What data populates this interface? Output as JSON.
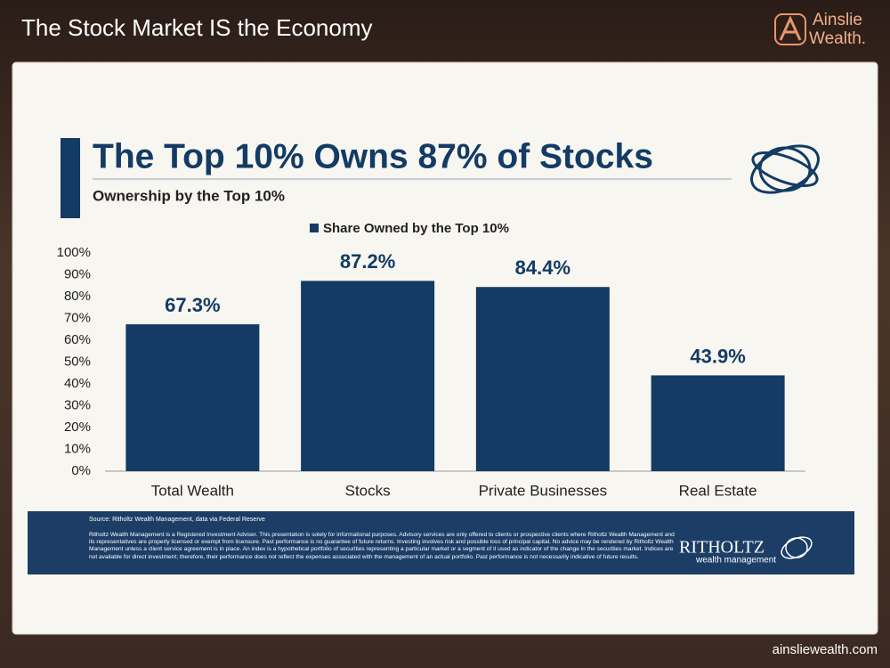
{
  "header": {
    "title": "The Stock Market IS the Economy",
    "brand_line1": "Ainslie",
    "brand_line2": "Wealth."
  },
  "footer": {
    "url": "ainsliewealth.com"
  },
  "chart_data": {
    "type": "bar",
    "title": "The Top 10% Owns 87% of Stocks",
    "subtitle": "Ownership by the Top 10%",
    "categories": [
      "Total Wealth",
      "Stocks",
      "Private Businesses",
      "Real Estate"
    ],
    "series": [
      {
        "name": "Share Owned by the Top 10%",
        "color": "#133b64",
        "values": [
          67.3,
          87.2,
          84.4,
          43.9
        ],
        "value_labels": [
          "67.3%",
          "87.2%",
          "84.4%",
          "43.9%"
        ]
      }
    ],
    "ylim": [
      0,
      100
    ],
    "yticks": [
      {
        "value": 0,
        "label": "0%"
      },
      {
        "value": 10,
        "label": "10%"
      },
      {
        "value": 20,
        "label": "20%"
      },
      {
        "value": 30,
        "label": "30%"
      },
      {
        "value": 40,
        "label": "40%"
      },
      {
        "value": 50,
        "label": "50%"
      },
      {
        "value": 60,
        "label": "60%"
      },
      {
        "value": 70,
        "label": "70%"
      },
      {
        "value": 80,
        "label": "80%"
      },
      {
        "value": 90,
        "label": "90%"
      },
      {
        "value": 100,
        "label": "100%"
      }
    ],
    "grid": false,
    "legend": "top"
  },
  "notes": {
    "source": "Source: Ritholtz Wealth Management, data via Federal Reserve",
    "disclaimer": "Ritholtz Wealth Management is a Registered Investment Adviser. This presentation is solely for informational purposes. Advisory services are only offered to clients or prospective clients where Ritholtz Wealth Management and its representatives are properly licensed or exempt from licensure. Past performance is no guarantee of future returns. Investing involves risk and possible loss of principal capital. No advice may be rendered by Ritholtz Wealth Management unless a client service agreement is in place. An index is a hypothetical portfolio of securities representing a particular market or a segment of it used as indicator of the change in the securities market. Indices are not available for direct investment; therefore, their performance does not reflect the expenses associated with the management of an actual portfolio. Past performance is not necessarily indicative of future results.",
    "firm": "RITHOLTZ",
    "firm_sub": "wealth management"
  }
}
